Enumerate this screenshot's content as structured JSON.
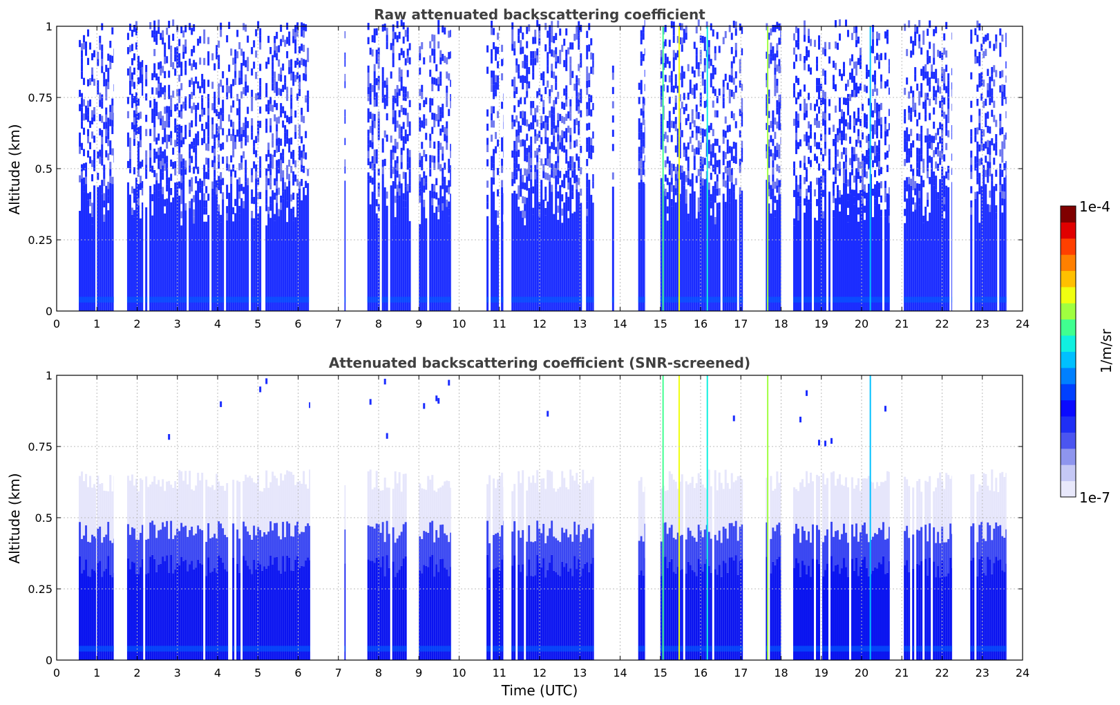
{
  "chart_data": [
    {
      "type": "heatmap",
      "title": "Raw attenuated backscattering coefficient",
      "xlabel": "",
      "ylabel": "Altitude (km)",
      "xlim": [
        0,
        24
      ],
      "ylim": [
        0,
        1
      ],
      "xticks": [
        "0",
        "1",
        "2",
        "3",
        "4",
        "5",
        "6",
        "7",
        "8",
        "9",
        "10",
        "11",
        "12",
        "13",
        "14",
        "15",
        "16",
        "17",
        "18",
        "19",
        "20",
        "21",
        "22",
        "23",
        "24"
      ],
      "yticks": [
        "0",
        "0.25",
        "0.5",
        "0.75",
        "1"
      ],
      "grid": true,
      "screened": false,
      "data_blocks": [
        {
          "start": 0.55,
          "end": 0.98
        },
        {
          "start": 1.0,
          "end": 1.42
        },
        {
          "start": 1.75,
          "end": 2.15
        },
        {
          "start": 2.2,
          "end": 6.3
        },
        {
          "start": 7.15,
          "end": 7.18
        },
        {
          "start": 7.72,
          "end": 8.8
        },
        {
          "start": 9.0,
          "end": 9.8
        },
        {
          "start": 10.68,
          "end": 11.1
        },
        {
          "start": 11.3,
          "end": 13.35
        },
        {
          "start": 13.8,
          "end": 13.85
        },
        {
          "start": 14.45,
          "end": 14.62
        },
        {
          "start": 15.0,
          "end": 17.05
        },
        {
          "start": 17.62,
          "end": 18.0
        },
        {
          "start": 18.3,
          "end": 20.7
        },
        {
          "start": 21.05,
          "end": 22.25
        },
        {
          "start": 22.7,
          "end": 23.6
        }
      ],
      "bright_lines": [
        15.05,
        15.45,
        16.15,
        17.65,
        20.2
      ]
    },
    {
      "type": "heatmap",
      "title": "Attenuated backscattering coefficient (SNR-screened)",
      "xlabel": "Time (UTC)",
      "ylabel": "Altitude (km)",
      "xlim": [
        0,
        24
      ],
      "ylim": [
        0,
        1
      ],
      "xticks": [
        "0",
        "1",
        "2",
        "3",
        "4",
        "5",
        "6",
        "7",
        "8",
        "9",
        "10",
        "11",
        "12",
        "13",
        "14",
        "15",
        "16",
        "17",
        "18",
        "19",
        "20",
        "21",
        "22",
        "23",
        "24"
      ],
      "yticks": [
        "0",
        "0.25",
        "0.5",
        "0.75",
        "1"
      ],
      "grid": true,
      "screened": true,
      "layer_top_km": 0.45,
      "faint_top_km": 0.63,
      "data_blocks": [
        {
          "start": 0.55,
          "end": 0.98
        },
        {
          "start": 1.0,
          "end": 1.42
        },
        {
          "start": 1.75,
          "end": 2.15
        },
        {
          "start": 2.2,
          "end": 6.3
        },
        {
          "start": 7.15,
          "end": 7.18
        },
        {
          "start": 7.72,
          "end": 8.8
        },
        {
          "start": 9.0,
          "end": 9.8
        },
        {
          "start": 10.68,
          "end": 11.1
        },
        {
          "start": 11.3,
          "end": 13.35
        },
        {
          "start": 13.8,
          "end": 13.85
        },
        {
          "start": 14.45,
          "end": 14.62
        },
        {
          "start": 15.0,
          "end": 17.05
        },
        {
          "start": 17.62,
          "end": 18.0
        },
        {
          "start": 18.3,
          "end": 20.7
        },
        {
          "start": 21.05,
          "end": 22.25
        },
        {
          "start": 22.7,
          "end": 23.6
        }
      ],
      "bright_lines": [
        15.05,
        15.45,
        16.15,
        17.65,
        20.2
      ]
    }
  ],
  "colorbar": {
    "label": "1/m/sr",
    "max_label": "1e-4",
    "min_label": "1e-7",
    "colors": [
      "#e8e8fb",
      "#c5c8f5",
      "#8e95ee",
      "#4b55f0",
      "#1f2ff5",
      "#0a0aff",
      "#0040ff",
      "#0080ff",
      "#00c0ff",
      "#10f0e0",
      "#40ff90",
      "#a0ff40",
      "#f0ff10",
      "#ffc000",
      "#ff8000",
      "#ff4000",
      "#e00000",
      "#800000"
    ]
  },
  "colors": {
    "title": "#404040",
    "grid": "#bbbbbb",
    "main_blue": "#1a2cff",
    "deep_blue": "#0a14f0",
    "faint_blue": "#e6e6fb",
    "mid_blue": "#6f78ef"
  }
}
